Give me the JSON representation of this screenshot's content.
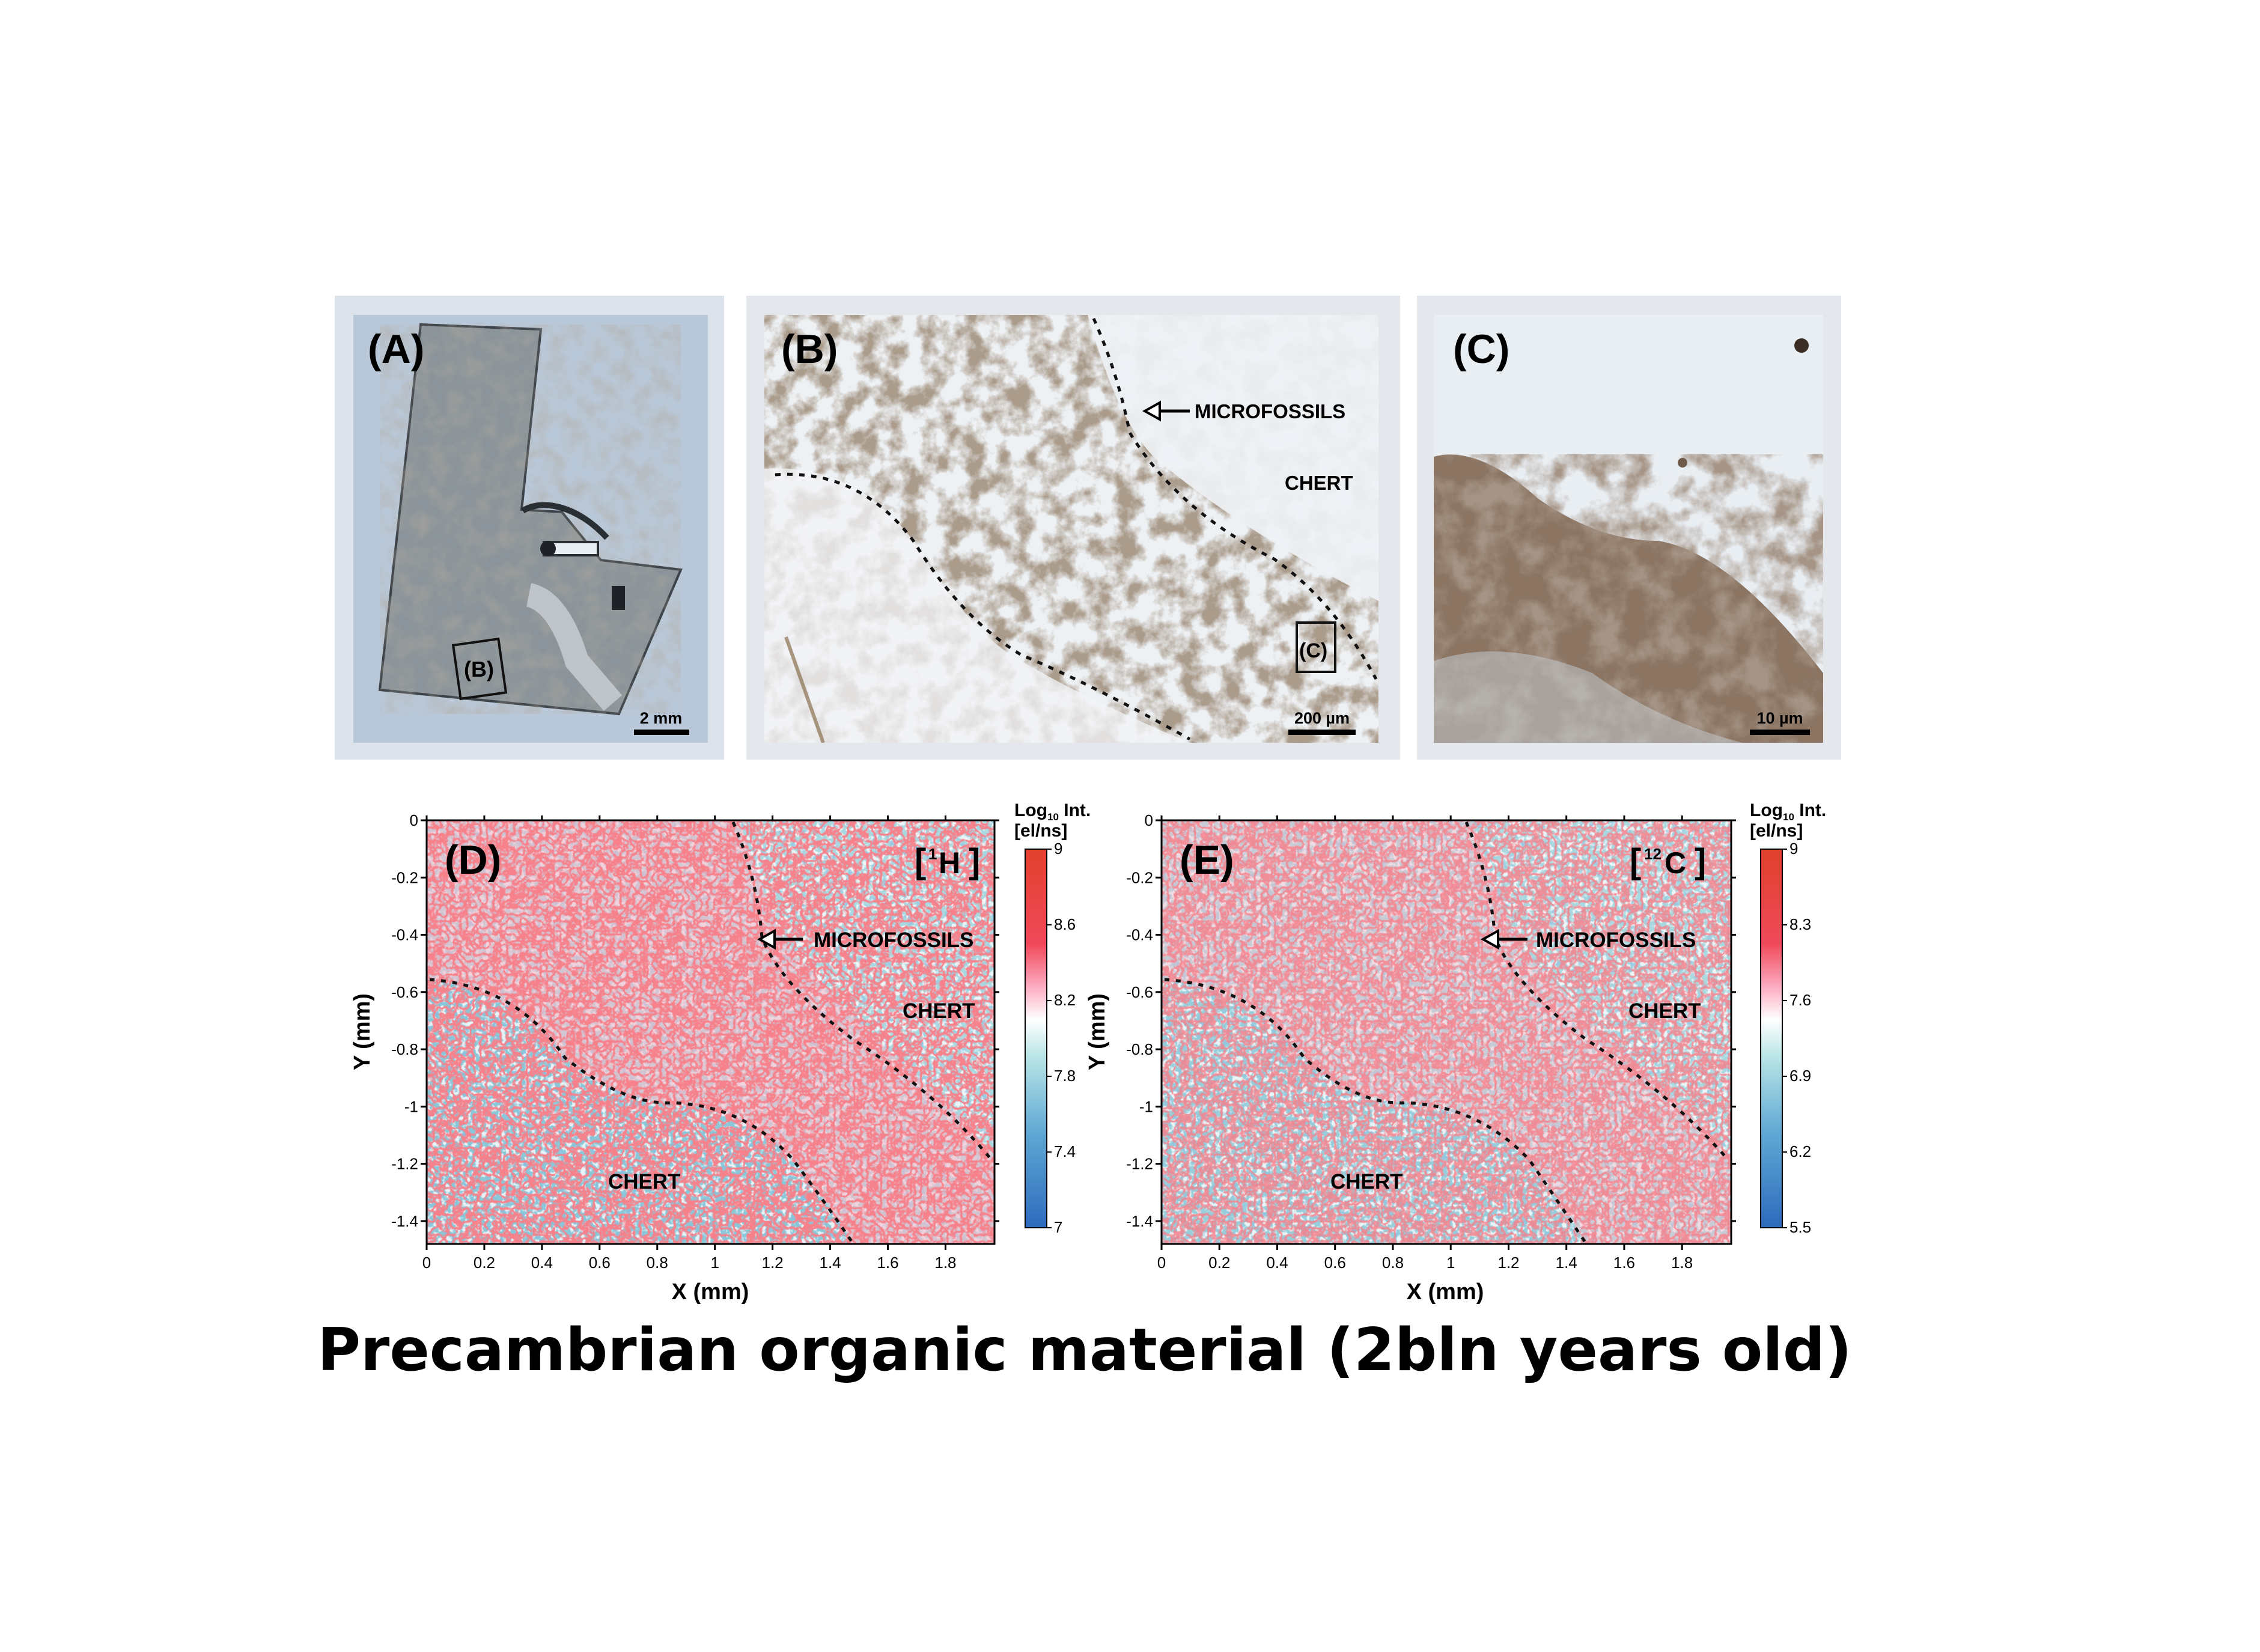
{
  "photos": {
    "a": {
      "label": "(A)",
      "inset_label": "(B)",
      "scale": "2 mm"
    },
    "b": {
      "label": "(B)",
      "arrow_label": "MICROFOSSILS",
      "region_label": "CHERT",
      "inset_label": "(C)",
      "scale": "200 µm"
    },
    "c": {
      "label": "(C)",
      "scale": "10 µm"
    }
  },
  "maps": [
    {
      "label": "(D)",
      "isotope_mass": "1",
      "isotope_symbol": "H",
      "arrow_label": "MICROFOSSILS",
      "region_label_upper": "CHERT",
      "region_label_lower": "CHERT",
      "xlabel": "X (mm)",
      "ylabel": "Y (mm)",
      "x_ticks": [
        "0",
        "0.2",
        "0.4",
        "0.6",
        "0.8",
        "1",
        "1.2",
        "1.4",
        "1.6",
        "1.8"
      ],
      "y_ticks": [
        "0",
        "-0.2",
        "-0.4",
        "-0.6",
        "-0.8",
        "-1",
        "-1.2",
        "-1.4"
      ],
      "colorbar_title_1": "Log",
      "colorbar_title_sub": "10",
      "colorbar_title_2": " Int.",
      "colorbar_units": "[el/ns]",
      "colorbar_ticks": [
        "9",
        "8.6",
        "8.2",
        "7.8",
        "7.4",
        "7"
      ]
    },
    {
      "label": "(E)",
      "isotope_mass": "12",
      "isotope_symbol": "C",
      "arrow_label": "MICROFOSSILS",
      "region_label_upper": "CHERT",
      "region_label_lower": "CHERT",
      "xlabel": "X (mm)",
      "ylabel": "Y (mm)",
      "x_ticks": [
        "0",
        "0.2",
        "0.4",
        "0.6",
        "0.8",
        "1",
        "1.2",
        "1.4",
        "1.6",
        "1.8"
      ],
      "y_ticks": [
        "0",
        "-0.2",
        "-0.4",
        "-0.6",
        "-0.8",
        "-1",
        "-1.2",
        "-1.4"
      ],
      "colorbar_title_1": "Log",
      "colorbar_title_sub": "10",
      "colorbar_title_2": " Int.",
      "colorbar_units": "[el/ns]",
      "colorbar_ticks": [
        "9",
        "8.3",
        "7.6",
        "6.9",
        "6.2",
        "5.5"
      ]
    }
  ],
  "colors": {
    "high": "#e8443a",
    "mid": "#ffffff",
    "low": "#2c6fb8",
    "background_cyan": "#a9d9e0"
  },
  "footer": "Precambrian organic material (2bln years old)"
}
